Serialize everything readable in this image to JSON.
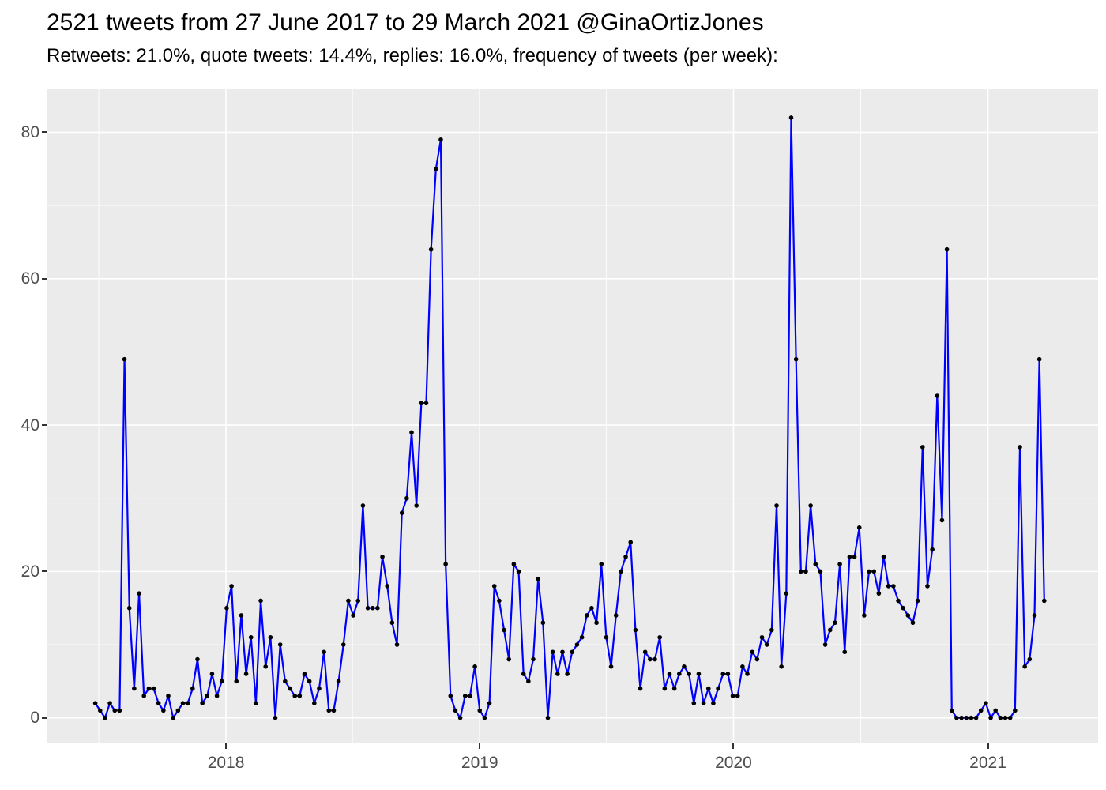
{
  "header": {
    "title": "2521 tweets from 27 June 2017 to 29 March 2021 @GinaOrtizJones",
    "subtitle": "Retweets: 21.0%, quote tweets: 14.4%, replies: 16.0%, frequency of tweets (per week):"
  },
  "chart_data": {
    "type": "line",
    "title": "2521 tweets from 27 June 2017 to 29 March 2021 @GinaOrtizJones",
    "subtitle": "Retweets: 21.0%, quote tweets: 14.4%, replies: 16.0%, frequency of tweets (per week):",
    "xlabel": "",
    "ylabel": "",
    "x_start_date": "2017-06-27",
    "x_interval_days": 7,
    "values": [
      2,
      1,
      0,
      2,
      1,
      1,
      49,
      15,
      4,
      17,
      3,
      4,
      4,
      2,
      1,
      3,
      0,
      1,
      2,
      2,
      4,
      8,
      2,
      3,
      6,
      3,
      5,
      15,
      18,
      5,
      14,
      6,
      11,
      2,
      16,
      7,
      11,
      0,
      10,
      5,
      4,
      3,
      3,
      6,
      5,
      2,
      4,
      9,
      1,
      1,
      5,
      10,
      16,
      14,
      16,
      29,
      15,
      15,
      15,
      22,
      18,
      13,
      10,
      28,
      30,
      39,
      29,
      43,
      43,
      64,
      75,
      79,
      21,
      3,
      1,
      0,
      3,
      3,
      7,
      1,
      0,
      2,
      18,
      16,
      12,
      8,
      21,
      20,
      6,
      5,
      8,
      19,
      13,
      0,
      9,
      6,
      9,
      6,
      9,
      10,
      11,
      14,
      15,
      13,
      21,
      11,
      7,
      14,
      20,
      22,
      24,
      12,
      4,
      9,
      8,
      8,
      11,
      4,
      6,
      4,
      6,
      7,
      6,
      2,
      6,
      2,
      4,
      2,
      4,
      6,
      6,
      3,
      3,
      7,
      6,
      9,
      8,
      11,
      10,
      12,
      29,
      7,
      17,
      82,
      49,
      20,
      20,
      29,
      21,
      20,
      10,
      12,
      13,
      21,
      9,
      22,
      22,
      26,
      14,
      20,
      20,
      17,
      22,
      18,
      18,
      16,
      15,
      14,
      13,
      16,
      37,
      18,
      23,
      44,
      27,
      64,
      1,
      0,
      0,
      0,
      0,
      0,
      1,
      2,
      0,
      1,
      0,
      0,
      0,
      1,
      37,
      7,
      8,
      14,
      49,
      16
    ],
    "y_ticks": [
      0,
      20,
      40,
      60,
      80
    ],
    "y_minor_ticks": [
      10,
      30,
      50,
      70
    ],
    "x_ticks": [
      {
        "date": "2018-01-01",
        "label": "2018"
      },
      {
        "date": "2019-01-01",
        "label": "2019"
      },
      {
        "date": "2020-01-01",
        "label": "2020"
      },
      {
        "date": "2021-01-01",
        "label": "2021"
      }
    ],
    "x_minor_ticks": [
      "2017-07-02",
      "2018-07-02",
      "2019-07-02",
      "2020-07-02"
    ],
    "x_domain_weeks": [
      -9.84,
      206.07
    ],
    "y_domain": [
      -3.49,
      85.88
    ],
    "grid": true,
    "legend": "none",
    "style": {
      "line_color": "#0000FF",
      "point_color": "#000000",
      "panel_background": "#EBEBEB",
      "grid_color": "#FFFFFF",
      "tick_label_color": "#4D4D4D",
      "tick_mark_color": "#333333",
      "title_color": "#000000"
    }
  }
}
